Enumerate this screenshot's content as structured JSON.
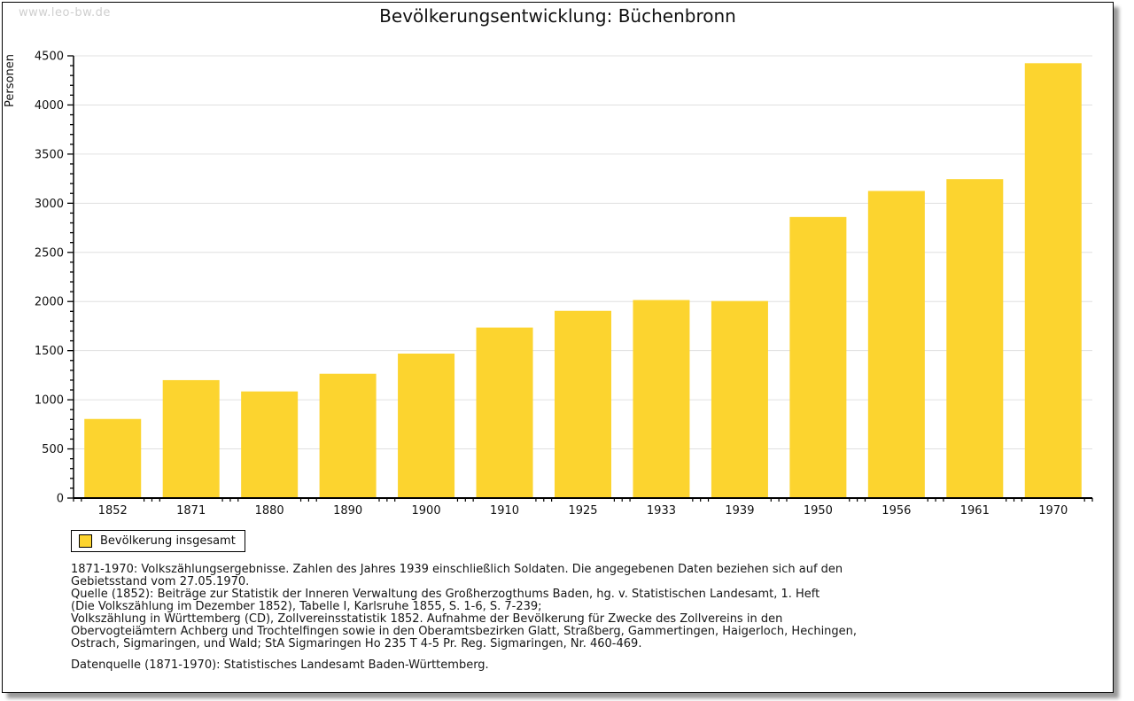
{
  "watermark": "www.leo-bw.de",
  "chart_data": {
    "type": "bar",
    "title": "Bevölkerungsentwicklung: Büchenbronn",
    "xlabel": "",
    "ylabel": "Personen",
    "categories": [
      "1852",
      "1871",
      "1880",
      "1890",
      "1900",
      "1910",
      "1925",
      "1933",
      "1939",
      "1950",
      "1956",
      "1961",
      "1970"
    ],
    "values": [
      805,
      1200,
      1085,
      1265,
      1470,
      1735,
      1905,
      2015,
      2005,
      2860,
      3125,
      3245,
      4425
    ],
    "ylim": [
      0,
      4500
    ],
    "y_major_step": 500,
    "y_minor_step": 100,
    "grid": "horizontal-major-only",
    "legend": [
      "Bevölkerung insgesamt"
    ],
    "legend_position": "bottom-left",
    "bar_color": "#FCD42F",
    "grid_color": "#e0e0e0",
    "axis_color": "#000000",
    "tick_label_color": "#111111"
  },
  "footnotes": {
    "lines": [
      "1871-1970: Volkszählungsergebnisse. Zahlen des Jahres 1939 einschließlich Soldaten. Die angegebenen Daten beziehen sich auf den",
      "Gebietsstand vom 27.05.1970.",
      "Quelle (1852): Beiträge zur Statistik der Inneren Verwaltung des Großherzogthums Baden, hg. v. Statistischen Landesamt, 1. Heft",
      "(Die Volkszählung im Dezember 1852), Tabelle I, Karlsruhe 1855, S. 1-6, S. 7-239;",
      "Volkszählung in Württemberg (CD), Zollvereinsstatistik 1852. Aufnahme der Bevölkerung für Zwecke des Zollvereins in den",
      "Obervogteiämtern Achberg und Trochtelfingen sowie in den Oberamtsbezirken Glatt, Straßberg, Gammertingen, Haigerloch, Hechingen,",
      "Ostrach, Sigmaringen, und Wald; StA Sigmaringen Ho 235 T 4-5 Pr. Reg. Sigmaringen, Nr. 460-469."
    ],
    "datasource": "Datenquelle (1871-1970): Statistisches Landesamt Baden-Württemberg."
  }
}
